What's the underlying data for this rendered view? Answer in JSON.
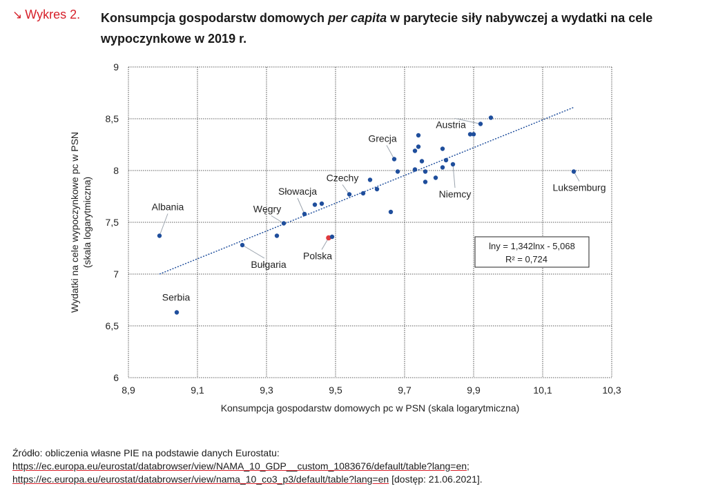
{
  "header": {
    "figure_label": "Wykres 2.",
    "arrow_icon": "arrow-down-right-icon",
    "title_part1": "Konsumpcja gospodarstw domowych ",
    "title_italic": "per capita",
    "title_part2": " w parytecie siły nabywczej a wydatki na cele wypoczynkowe w 2019 r."
  },
  "chart_data": {
    "type": "scatter",
    "xlabel": "Konsumpcja gospodarstw domowych pc w PSN (skala logarytmiczna)",
    "ylabel_line1": "Wydatki na cele wypoczynkowe pc w PSN",
    "ylabel_line2": "(skala logarytmiczna)",
    "xlim": [
      8.9,
      10.3
    ],
    "ylim": [
      6,
      9
    ],
    "xticks": [
      8.9,
      9.1,
      9.3,
      9.5,
      9.7,
      9.9,
      10.1,
      10.3
    ],
    "xtick_labels": [
      "8,9",
      "9,1",
      "9,3",
      "9,5",
      "9,7",
      "9,9",
      "10,1",
      "10,3"
    ],
    "yticks": [
      6,
      6.5,
      7,
      7.5,
      8,
      8.5,
      9
    ],
    "ytick_labels": [
      "6",
      "6,5",
      "7",
      "7,5",
      "8",
      "8,5",
      "9"
    ],
    "grid": true,
    "colors": {
      "point": "#1f4e9c",
      "highlight": "#e03a3e",
      "trend": "#1f4e9c",
      "grid": "#222222"
    },
    "trendline": {
      "x": [
        8.99,
        10.19
      ],
      "y": [
        7.0,
        8.61
      ],
      "style": "dotted"
    },
    "equation": {
      "line1": "lny = 1,342lnx - 5,068",
      "line2": "R² = 0,724"
    },
    "points": [
      {
        "x": 8.99,
        "y": 7.37,
        "label": "Albania"
      },
      {
        "x": 9.04,
        "y": 6.63,
        "label": "Serbia"
      },
      {
        "x": 9.23,
        "y": 7.28,
        "label": "Bułgaria"
      },
      {
        "x": 9.33,
        "y": 7.37
      },
      {
        "x": 9.35,
        "y": 7.49,
        "label": "Węgry"
      },
      {
        "x": 9.41,
        "y": 7.58,
        "label": "Słowacja"
      },
      {
        "x": 9.44,
        "y": 7.67
      },
      {
        "x": 9.46,
        "y": 7.68
      },
      {
        "x": 9.48,
        "y": 7.35,
        "label": "Polska",
        "highlight": true
      },
      {
        "x": 9.49,
        "y": 7.36
      },
      {
        "x": 9.54,
        "y": 7.77,
        "label": "Czechy"
      },
      {
        "x": 9.58,
        "y": 7.78
      },
      {
        "x": 9.6,
        "y": 7.91
      },
      {
        "x": 9.62,
        "y": 7.82
      },
      {
        "x": 9.66,
        "y": 7.6
      },
      {
        "x": 9.67,
        "y": 8.11,
        "label": "Grecja"
      },
      {
        "x": 9.68,
        "y": 7.99
      },
      {
        "x": 9.73,
        "y": 8.01
      },
      {
        "x": 9.73,
        "y": 8.19
      },
      {
        "x": 9.74,
        "y": 8.23
      },
      {
        "x": 9.74,
        "y": 8.34
      },
      {
        "x": 9.75,
        "y": 8.09
      },
      {
        "x": 9.76,
        "y": 7.99
      },
      {
        "x": 9.76,
        "y": 7.89
      },
      {
        "x": 9.79,
        "y": 7.93
      },
      {
        "x": 9.81,
        "y": 8.03
      },
      {
        "x": 9.81,
        "y": 8.21
      },
      {
        "x": 9.82,
        "y": 8.1
      },
      {
        "x": 9.84,
        "y": 8.06,
        "label": "Niemcy"
      },
      {
        "x": 9.89,
        "y": 8.35
      },
      {
        "x": 9.9,
        "y": 8.35
      },
      {
        "x": 9.92,
        "y": 8.45,
        "label": "Austria"
      },
      {
        "x": 9.95,
        "y": 8.51
      },
      {
        "x": 10.19,
        "y": 7.99,
        "label": "Luksemburg"
      }
    ]
  },
  "source": {
    "prefix": "Źródło: obliczenia własne PIE na podstawie danych Eurostatu: ",
    "link1": "https://ec.europa.eu/eurostat/databrowser/view/NAMA_10_GDP__custom_1083676/default/table?lang=en",
    "separator": "; ",
    "link2": "https://ec.europa.eu/eurostat/databrowser/view/nama_10_co3_p3/default/table?lang=en",
    "suffix": " [dostęp: 21.06.2021]."
  }
}
